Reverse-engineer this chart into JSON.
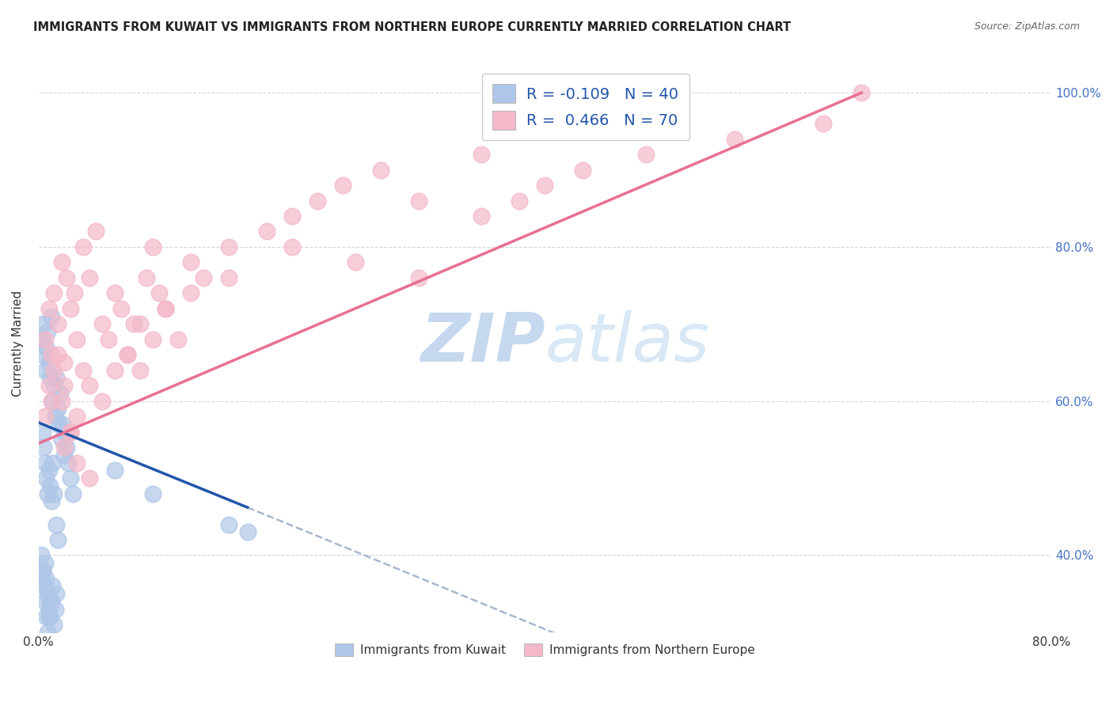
{
  "title": "IMMIGRANTS FROM KUWAIT VS IMMIGRANTS FROM NORTHERN EUROPE CURRENTLY MARRIED CORRELATION CHART",
  "source": "Source: ZipAtlas.com",
  "ylabel": "Currently Married",
  "xlim": [
    0.0,
    0.8
  ],
  "ylim": [
    0.3,
    1.05
  ],
  "right_yticks": [
    0.4,
    0.6,
    0.8,
    1.0
  ],
  "right_yticklabels": [
    "40.0%",
    "60.0%",
    "80.0%",
    "100.0%"
  ],
  "legend_R_blue": "-0.109",
  "legend_N_blue": "40",
  "legend_R_pink": "0.466",
  "legend_N_pink": "70",
  "blue_color": "#aec6e8",
  "pink_color": "#f4b8c8",
  "blue_line_color": "#2255aa",
  "pink_line_color": "#e87090",
  "dashed_line_color": "#a8b8cc",
  "watermark_color": "#d8e4f0",
  "blue_scatter_x": [
    0.002,
    0.003,
    0.004,
    0.005,
    0.006,
    0.007,
    0.008,
    0.009,
    0.01,
    0.011,
    0.012,
    0.013,
    0.014,
    0.015,
    0.016,
    0.017,
    0.018,
    0.019,
    0.02,
    0.021,
    0.022,
    0.023,
    0.025,
    0.027,
    0.003,
    0.004,
    0.005,
    0.006,
    0.007,
    0.008,
    0.009,
    0.01,
    0.011,
    0.012,
    0.014,
    0.015,
    0.06,
    0.09,
    0.15,
    0.165
  ],
  "blue_scatter_y": [
    0.68,
    0.66,
    0.7,
    0.64,
    0.67,
    0.69,
    0.65,
    0.63,
    0.71,
    0.6,
    0.62,
    0.58,
    0.63,
    0.59,
    0.57,
    0.61,
    0.55,
    0.57,
    0.53,
    0.56,
    0.54,
    0.52,
    0.5,
    0.48,
    0.56,
    0.54,
    0.52,
    0.5,
    0.48,
    0.51,
    0.49,
    0.47,
    0.52,
    0.48,
    0.44,
    0.42,
    0.51,
    0.48,
    0.44,
    0.43
  ],
  "blue_scatter_x2": [
    0.002,
    0.003,
    0.004,
    0.005,
    0.006,
    0.007,
    0.008,
    0.009,
    0.01,
    0.011,
    0.012,
    0.013,
    0.014,
    0.003,
    0.004,
    0.005,
    0.006,
    0.007,
    0.008,
    0.009
  ],
  "blue_scatter_y2": [
    0.4,
    0.38,
    0.36,
    0.39,
    0.37,
    0.35,
    0.33,
    0.32,
    0.34,
    0.36,
    0.31,
    0.33,
    0.35,
    0.38,
    0.36,
    0.34,
    0.32,
    0.3,
    0.32,
    0.34
  ],
  "pink_scatter_x": [
    0.005,
    0.008,
    0.01,
    0.012,
    0.015,
    0.018,
    0.02,
    0.022,
    0.025,
    0.028,
    0.03,
    0.035,
    0.04,
    0.045,
    0.05,
    0.055,
    0.06,
    0.065,
    0.07,
    0.075,
    0.08,
    0.085,
    0.09,
    0.095,
    0.1,
    0.11,
    0.12,
    0.13,
    0.15,
    0.18,
    0.005,
    0.008,
    0.01,
    0.012,
    0.015,
    0.018,
    0.02,
    0.025,
    0.03,
    0.035,
    0.04,
    0.05,
    0.06,
    0.07,
    0.08,
    0.09,
    0.1,
    0.12,
    0.15,
    0.2,
    0.25,
    0.3,
    0.35,
    0.38,
    0.02,
    0.025,
    0.03,
    0.04,
    0.2,
    0.22,
    0.24,
    0.27,
    0.3,
    0.35,
    0.4,
    0.43,
    0.48,
    0.55,
    0.62,
    0.65
  ],
  "pink_scatter_y": [
    0.68,
    0.72,
    0.66,
    0.74,
    0.7,
    0.78,
    0.65,
    0.76,
    0.72,
    0.74,
    0.68,
    0.8,
    0.76,
    0.82,
    0.7,
    0.68,
    0.74,
    0.72,
    0.66,
    0.7,
    0.64,
    0.76,
    0.8,
    0.74,
    0.72,
    0.68,
    0.78,
    0.76,
    0.8,
    0.82,
    0.58,
    0.62,
    0.6,
    0.64,
    0.66,
    0.6,
    0.62,
    0.56,
    0.58,
    0.64,
    0.62,
    0.6,
    0.64,
    0.66,
    0.7,
    0.68,
    0.72,
    0.74,
    0.76,
    0.8,
    0.78,
    0.76,
    0.84,
    0.86,
    0.54,
    0.56,
    0.52,
    0.5,
    0.84,
    0.86,
    0.88,
    0.9,
    0.86,
    0.92,
    0.88,
    0.9,
    0.92,
    0.94,
    0.96,
    1.0
  ],
  "blue_trendline_x": [
    0.0,
    0.165
  ],
  "blue_trendline_y": [
    0.572,
    0.462
  ],
  "dashed_line_x": [
    0.165,
    0.8
  ],
  "dashed_line_y": [
    0.462,
    0.035
  ],
  "pink_trendline_x": [
    0.0,
    0.65
  ],
  "pink_trendline_y": [
    0.545,
    1.0
  ],
  "bottom_legend_items": [
    "Immigrants from Kuwait",
    "Immigrants from Northern Europe"
  ]
}
